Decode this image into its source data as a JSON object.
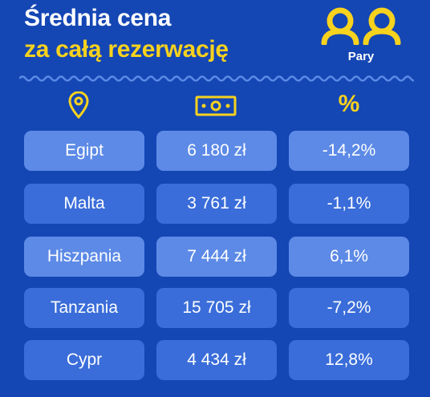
{
  "title": {
    "line1": "Średnia cena",
    "line2": "za całą rezerwację"
  },
  "segment": {
    "label": "Pary",
    "icon": "couple-icon"
  },
  "columns": {
    "destination_icon": "location-pin-icon",
    "price_icon": "banknote-icon",
    "change_symbol": "%"
  },
  "rows": [
    {
      "destination": "Egipt",
      "price": "6 180 zł",
      "change": "-14,2%"
    },
    {
      "destination": "Malta",
      "price": "3 761 zł",
      "change": "-1,1%"
    },
    {
      "destination": "Hiszpania",
      "price": "7 444 zł",
      "change": "6,1%"
    },
    {
      "destination": "Tanzania",
      "price": "15 705 zł",
      "change": "-7,2%"
    },
    {
      "destination": "Cypr",
      "price": "4 434 zł",
      "change": "12,8%"
    }
  ],
  "colors": {
    "background": "#1446B4",
    "accent": "#F7D21E",
    "cell_light": "#5C8AE6",
    "cell_dark": "#3A6DD9",
    "text": "#FFFFFF"
  }
}
